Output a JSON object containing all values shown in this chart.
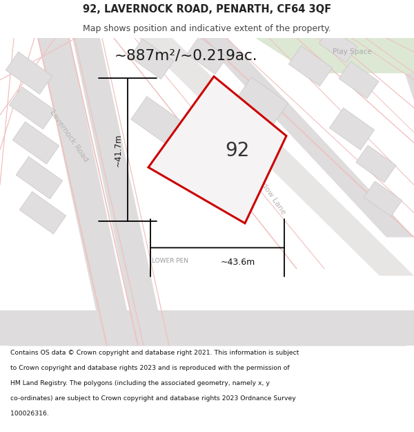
{
  "title": "92, LAVERNOCK ROAD, PENARTH, CF64 3QF",
  "subtitle": "Map shows position and indicative extent of the property.",
  "area_label": "~887m²/~0.219ac.",
  "property_number": "92",
  "dim_height": "~41.7m",
  "dim_width": "~43.6m",
  "footer_lines": [
    "Contains OS data © Crown copyright and database right 2021. This information is subject",
    "to Crown copyright and database rights 2023 and is reproduced with the permission of",
    "HM Land Registry. The polygons (including the associated geometry, namely x, y",
    "co-ordinates) are subject to Crown copyright and database rights 2023 Ordnance Survey",
    "100026316."
  ],
  "map_bg": "#f2f0f0",
  "block_color": "#e0dede",
  "block_outline": "#c8c5c5",
  "property_fill": "#f5f3f3",
  "property_edge": "#cc0000",
  "title_color": "#222222",
  "subtitle_color": "#444444",
  "footer_color": "#111111",
  "green_area": "#dce8d4",
  "pink_road": "#f0c0c0",
  "gray_road": "#dedcdc",
  "road_label_color": "#b8b4b4",
  "lower_pen_color": "#999999"
}
